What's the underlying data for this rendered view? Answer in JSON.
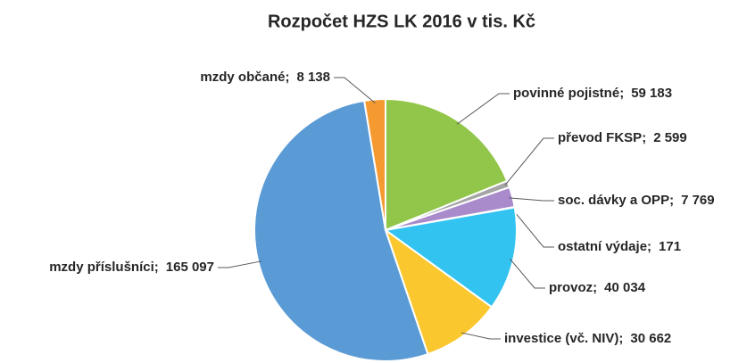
{
  "chart_data": {
    "type": "pie",
    "title": "Rozpočet HZS LK 2016 v tis. Kč",
    "categories": [
      "povinné pojistné",
      "převod FKSP",
      "soc. dávky a OPP",
      "ostatní výdaje",
      "provoz",
      "investice (vč. NIV)",
      "mzdy příslušníci",
      "mzdy občané"
    ],
    "values": [
      59183,
      2599,
      7769,
      171,
      40034,
      30662,
      165097,
      8138
    ],
    "value_labels": [
      "59 183",
      "2 599",
      "7 769",
      "171",
      "40 034",
      "30 662",
      "165 097",
      "8 138"
    ],
    "separator": ";",
    "colors": [
      "#92c64a",
      "#a5a5a5",
      "#a98bcc",
      "#264478",
      "#33c3f0",
      "#fbc72e",
      "#5b9bd5",
      "#f59a30"
    ]
  }
}
